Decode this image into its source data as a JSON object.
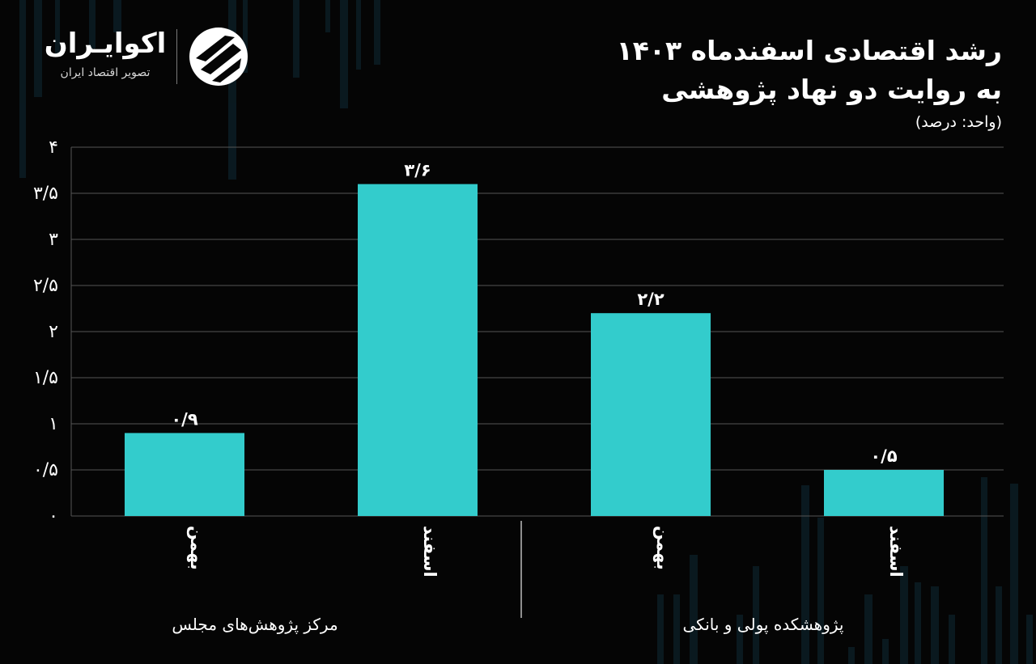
{
  "brand": {
    "name": "اکوایـران",
    "tagline": "تصویر اقتصاد ایران"
  },
  "header": {
    "title_line1": "رشد اقتصادی اسفندماه ۱۴۰۳",
    "title_line2": "به روایت دو نهاد پژوهشی",
    "unit": "(واحد: درصد)"
  },
  "colors": {
    "background": "#050505",
    "bar": "#33cccc",
    "grid": "#555555",
    "text": "#ffffff"
  },
  "chart_data": {
    "type": "bar",
    "title": "رشد اقتصادی اسفندماه ۱۴۰۳ به روایت دو نهاد پژوهشی",
    "unit": "(واحد: درصد)",
    "categories": [
      "بهمن",
      "اسفند",
      "بهمن",
      "اسفند"
    ],
    "groups": [
      {
        "name": "مرکز پژوهش‌های مجلس",
        "categories": [
          "بهمن",
          "اسفند"
        ]
      },
      {
        "name": "پژوهشکده پولی و بانکی",
        "categories": [
          "بهمن",
          "اسفند"
        ]
      }
    ],
    "values": [
      0.9,
      3.6,
      2.2,
      0.5
    ],
    "value_labels": [
      "۰/۹",
      "۳/۶",
      "۲/۲",
      "۰/۵"
    ],
    "ylim": [
      0,
      4
    ],
    "yticks": [
      {
        "value": 0,
        "label": "۰"
      },
      {
        "value": 0.5,
        "label": "۰/۵"
      },
      {
        "value": 1,
        "label": "۱"
      },
      {
        "value": 1.5,
        "label": "۱/۵"
      },
      {
        "value": 2,
        "label": "۲"
      },
      {
        "value": 2.5,
        "label": "۲/۵"
      },
      {
        "value": 3,
        "label": "۳"
      },
      {
        "value": 3.5,
        "label": "۳/۵"
      },
      {
        "value": 4,
        "label": "۴"
      }
    ],
    "grid": true,
    "legend": "none"
  }
}
